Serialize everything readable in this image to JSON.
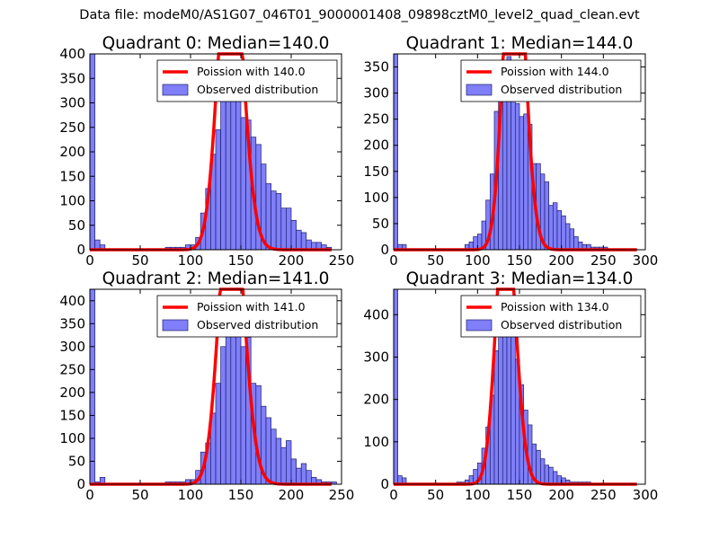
{
  "figure_title": "Data file: modeM0/AS1G07_046T01_9000001408_09898cztM0_level2_quad_clean.evt",
  "colors": {
    "bar_fill": "#7f7ff9",
    "bar_edge": "#1f1f6e",
    "line": "#ff0000",
    "axes": "#000000"
  },
  "chart_data": [
    {
      "type": "bar",
      "title": "Quadrant 0: Median=140.0",
      "xlim": [
        0,
        250
      ],
      "ylim": [
        0,
        400
      ],
      "xticks": [
        0,
        50,
        100,
        150,
        200,
        250
      ],
      "yticks": [
        0,
        50,
        100,
        150,
        200,
        250,
        300,
        350,
        400
      ],
      "bin_width": 5,
      "median": 140,
      "legend": [
        "Poission with 140.0",
        "Observed distribution"
      ],
      "hist": [
        [
          0,
          400
        ],
        [
          5,
          20
        ],
        [
          10,
          10
        ],
        [
          75,
          5
        ],
        [
          80,
          5
        ],
        [
          85,
          5
        ],
        [
          90,
          5
        ],
        [
          95,
          10
        ],
        [
          100,
          10
        ],
        [
          105,
          25
        ],
        [
          110,
          75
        ],
        [
          115,
          125
        ],
        [
          120,
          195
        ],
        [
          125,
          245
        ],
        [
          130,
          310
        ],
        [
          135,
          360
        ],
        [
          140,
          365
        ],
        [
          145,
          320
        ],
        [
          150,
          270
        ],
        [
          155,
          265
        ],
        [
          160,
          230
        ],
        [
          165,
          215
        ],
        [
          170,
          175
        ],
        [
          175,
          135
        ],
        [
          180,
          120
        ],
        [
          185,
          115
        ],
        [
          190,
          85
        ],
        [
          195,
          85
        ],
        [
          200,
          60
        ],
        [
          205,
          40
        ],
        [
          210,
          35
        ],
        [
          215,
          20
        ],
        [
          220,
          15
        ],
        [
          225,
          15
        ],
        [
          230,
          10
        ],
        [
          235,
          5
        ]
      ]
    },
    {
      "type": "bar",
      "title": "Quadrant 1: Median=144.0",
      "xlim": [
        0,
        300
      ],
      "ylim": [
        0,
        375
      ],
      "xticks": [
        0,
        50,
        100,
        150,
        200,
        250,
        300
      ],
      "yticks": [
        0,
        50,
        100,
        150,
        200,
        250,
        300,
        350
      ],
      "bin_width": 5,
      "median": 144,
      "legend": [
        "Poission with 144.0",
        "Observed distribution"
      ],
      "hist": [
        [
          0,
          375
        ],
        [
          5,
          10
        ],
        [
          10,
          10
        ],
        [
          85,
          10
        ],
        [
          90,
          15
        ],
        [
          95,
          25
        ],
        [
          100,
          30
        ],
        [
          105,
          55
        ],
        [
          110,
          95
        ],
        [
          115,
          145
        ],
        [
          120,
          265
        ],
        [
          125,
          315
        ],
        [
          130,
          355
        ],
        [
          135,
          370
        ],
        [
          140,
          355
        ],
        [
          145,
          280
        ],
        [
          150,
          255
        ],
        [
          155,
          260
        ],
        [
          160,
          240
        ],
        [
          165,
          165
        ],
        [
          170,
          165
        ],
        [
          175,
          145
        ],
        [
          180,
          130
        ],
        [
          185,
          85
        ],
        [
          190,
          90
        ],
        [
          195,
          75
        ],
        [
          200,
          65
        ],
        [
          205,
          50
        ],
        [
          210,
          40
        ],
        [
          215,
          25
        ],
        [
          220,
          15
        ],
        [
          225,
          10
        ],
        [
          230,
          10
        ],
        [
          235,
          5
        ],
        [
          240,
          5
        ],
        [
          245,
          5
        ],
        [
          250,
          5
        ]
      ]
    },
    {
      "type": "bar",
      "title": "Quadrant 2: Median=141.0",
      "xlim": [
        0,
        250
      ],
      "ylim": [
        0,
        425
      ],
      "xticks": [
        0,
        50,
        100,
        150,
        200,
        250
      ],
      "yticks": [
        0,
        50,
        100,
        150,
        200,
        250,
        300,
        350,
        400
      ],
      "bin_width": 5,
      "median": 141,
      "legend": [
        "Poission with 141.0",
        "Observed distribution"
      ],
      "hist": [
        [
          0,
          425
        ],
        [
          5,
          5
        ],
        [
          10,
          15
        ],
        [
          75,
          5
        ],
        [
          80,
          5
        ],
        [
          85,
          5
        ],
        [
          90,
          5
        ],
        [
          95,
          10
        ],
        [
          100,
          10
        ],
        [
          105,
          30
        ],
        [
          110,
          70
        ],
        [
          115,
          90
        ],
        [
          120,
          155
        ],
        [
          125,
          220
        ],
        [
          130,
          300
        ],
        [
          135,
          350
        ],
        [
          140,
          365
        ],
        [
          145,
          380
        ],
        [
          150,
          300
        ],
        [
          155,
          320
        ],
        [
          160,
          220
        ],
        [
          165,
          215
        ],
        [
          170,
          170
        ],
        [
          175,
          145
        ],
        [
          180,
          120
        ],
        [
          185,
          100
        ],
        [
          190,
          80
        ],
        [
          195,
          95
        ],
        [
          200,
          55
        ],
        [
          205,
          35
        ],
        [
          210,
          45
        ],
        [
          215,
          30
        ],
        [
          220,
          15
        ],
        [
          225,
          10
        ],
        [
          230,
          5
        ],
        [
          235,
          5
        ],
        [
          240,
          5
        ]
      ]
    },
    {
      "type": "bar",
      "title": "Quadrant 3: Median=134.0",
      "xlim": [
        0,
        300
      ],
      "ylim": [
        0,
        460
      ],
      "xticks": [
        0,
        50,
        100,
        150,
        200,
        250,
        300
      ],
      "yticks": [
        0,
        100,
        200,
        300,
        400
      ],
      "bin_width": 5,
      "median": 134,
      "legend": [
        "Poission with 134.0",
        "Observed distribution"
      ],
      "hist": [
        [
          0,
          460
        ],
        [
          5,
          20
        ],
        [
          10,
          15
        ],
        [
          75,
          5
        ],
        [
          80,
          5
        ],
        [
          85,
          10
        ],
        [
          90,
          20
        ],
        [
          95,
          35
        ],
        [
          100,
          50
        ],
        [
          105,
          85
        ],
        [
          110,
          135
        ],
        [
          115,
          210
        ],
        [
          120,
          315
        ],
        [
          125,
          395
        ],
        [
          130,
          430
        ],
        [
          135,
          420
        ],
        [
          140,
          380
        ],
        [
          145,
          295
        ],
        [
          150,
          235
        ],
        [
          155,
          175
        ],
        [
          160,
          140
        ],
        [
          165,
          95
        ],
        [
          170,
          80
        ],
        [
          175,
          60
        ],
        [
          180,
          45
        ],
        [
          185,
          40
        ],
        [
          190,
          30
        ],
        [
          195,
          20
        ],
        [
          200,
          15
        ],
        [
          205,
          10
        ],
        [
          210,
          5
        ],
        [
          215,
          5
        ],
        [
          220,
          5
        ],
        [
          225,
          5
        ],
        [
          230,
          5
        ]
      ]
    }
  ]
}
